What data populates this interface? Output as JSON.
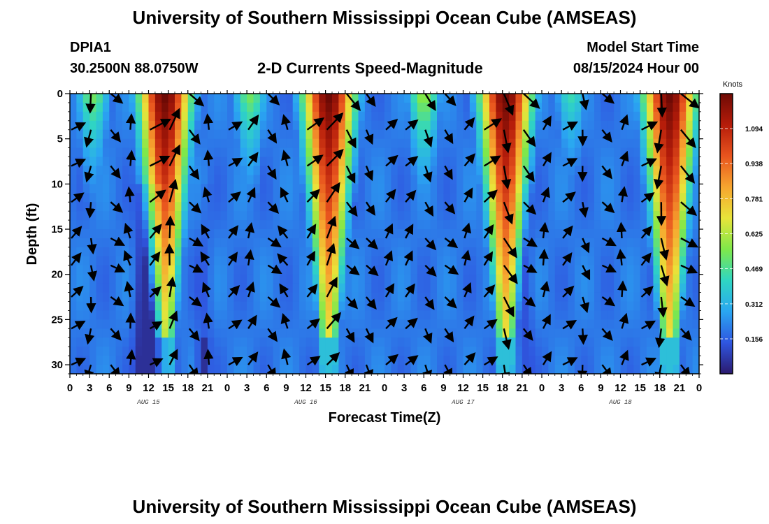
{
  "header": {
    "title": "University of Southern Mississippi Ocean Cube (AMSEAS)",
    "station_id": "DPIA1",
    "station_coords": "30.2500N  88.0750W",
    "chart_title": "2-D Currents Speed-Magnitude",
    "model_start_label": "Model Start Time",
    "model_start_value": "08/15/2024 Hour 00",
    "footer_title": "University of Southern Mississippi Ocean Cube (AMSEAS)"
  },
  "chart_data": {
    "type": "heatmap",
    "title": "2-D Currents Speed-Magnitude",
    "xlabel": "Forecast Time(Z)",
    "ylabel": "Depth (ft)",
    "x_tick_labels": [
      "0",
      "3",
      "6",
      "9",
      "12",
      "15",
      "18",
      "21",
      "0",
      "3",
      "6",
      "9",
      "12",
      "15",
      "18",
      "21",
      "0",
      "3",
      "6",
      "9",
      "12",
      "15",
      "18",
      "21",
      "0",
      "3",
      "6",
      "9",
      "12",
      "15",
      "18",
      "21",
      "0"
    ],
    "day_labels": [
      {
        "label": "AUG 15",
        "hour": 12
      },
      {
        "label": "AUG 16",
        "hour": 36
      },
      {
        "label": "AUG 17",
        "hour": 60
      },
      {
        "label": "AUG 18",
        "hour": 84
      }
    ],
    "x_range_hours": [
      0,
      96
    ],
    "y_tick_labels": [
      "0",
      "5",
      "10",
      "15",
      "20",
      "25",
      "30"
    ],
    "y_range_ft": [
      0,
      31
    ],
    "colorbar": {
      "unit": "Knots",
      "labels": [
        "1.094",
        "0.938",
        "0.781",
        "0.625",
        "0.469",
        "0.312",
        "0.156"
      ],
      "range": [
        0,
        1.25
      ],
      "colors": [
        "#2b1a6e",
        "#2f56e0",
        "#2aa6f2",
        "#2fd6c2",
        "#7fe84a",
        "#e8e43a",
        "#f7a52f",
        "#e8541e",
        "#b51c0a",
        "#6e0a05"
      ]
    },
    "speed_peaks": [
      {
        "center_hour": 14.5,
        "peak_knots": 1.2
      },
      {
        "center_hour": 39.5,
        "peak_knots": 1.2
      },
      {
        "center_hour": 66.5,
        "peak_knots": 1.2
      },
      {
        "center_hour": 91.5,
        "peak_knots": 1.2
      }
    ],
    "secondary_peaks": [
      {
        "center_hour": 3.5,
        "peak_knots": 0.55
      },
      {
        "center_hour": 27.5,
        "peak_knots": 0.55
      },
      {
        "center_hour": 54.0,
        "peak_knots": 0.6
      },
      {
        "center_hour": 76.5,
        "peak_knots": 0.45
      }
    ],
    "vector_depths_ft": [
      0,
      4,
      8,
      12,
      16,
      19,
      22.5,
      26,
      30
    ],
    "vector_column_hours": [
      0,
      3,
      6,
      9,
      12,
      15,
      18,
      21,
      24,
      27,
      30,
      33,
      36,
      39,
      42,
      45,
      48,
      51,
      54,
      57,
      60,
      63,
      66,
      69,
      72,
      75,
      78,
      81,
      84,
      87,
      90,
      93,
      96
    ]
  }
}
